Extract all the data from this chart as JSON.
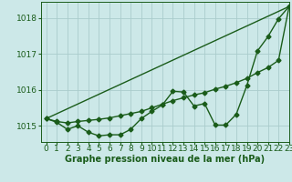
{
  "background_color": "#cce8e8",
  "grid_color": "#aacccc",
  "line_color": "#1a5c1a",
  "xlabel": "Graphe pression niveau de la mer (hPa)",
  "xlim": [
    -0.5,
    23
  ],
  "ylim": [
    1014.55,
    1018.45
  ],
  "yticks": [
    1015,
    1016,
    1017,
    1018
  ],
  "xticks": [
    0,
    1,
    2,
    3,
    4,
    5,
    6,
    7,
    8,
    9,
    10,
    11,
    12,
    13,
    14,
    15,
    16,
    17,
    18,
    19,
    20,
    21,
    22,
    23
  ],
  "series_wavy": {
    "x": [
      0,
      1,
      2,
      3,
      4,
      5,
      6,
      7,
      8,
      9,
      10,
      11,
      12,
      13,
      14,
      15,
      16,
      17,
      18,
      19,
      20,
      21,
      22,
      23
    ],
    "y": [
      1015.2,
      1015.1,
      1014.9,
      1015.0,
      1014.82,
      1014.72,
      1014.75,
      1014.75,
      1014.9,
      1015.2,
      1015.4,
      1015.58,
      1015.96,
      1015.94,
      1015.55,
      1015.62,
      1015.02,
      1015.02,
      1015.32,
      1016.12,
      1017.08,
      1017.48,
      1017.98,
      1018.32
    ]
  },
  "series_smooth": {
    "x": [
      0,
      1,
      2,
      3,
      4,
      5,
      6,
      7,
      8,
      9,
      10,
      11,
      12,
      13,
      14,
      15,
      16,
      17,
      18,
      19,
      20,
      21,
      22,
      23
    ],
    "y": [
      1015.2,
      1015.12,
      1015.08,
      1015.12,
      1015.15,
      1015.18,
      1015.22,
      1015.28,
      1015.34,
      1015.4,
      1015.5,
      1015.6,
      1015.7,
      1015.78,
      1015.86,
      1015.92,
      1016.02,
      1016.1,
      1016.2,
      1016.32,
      1016.48,
      1016.62,
      1016.82,
      1018.32
    ]
  },
  "series_line": {
    "x": [
      0,
      23
    ],
    "y": [
      1015.2,
      1018.32
    ]
  },
  "marker_size": 2.5,
  "line_width": 1.0,
  "font_size_label": 7,
  "font_size_tick": 6.5
}
